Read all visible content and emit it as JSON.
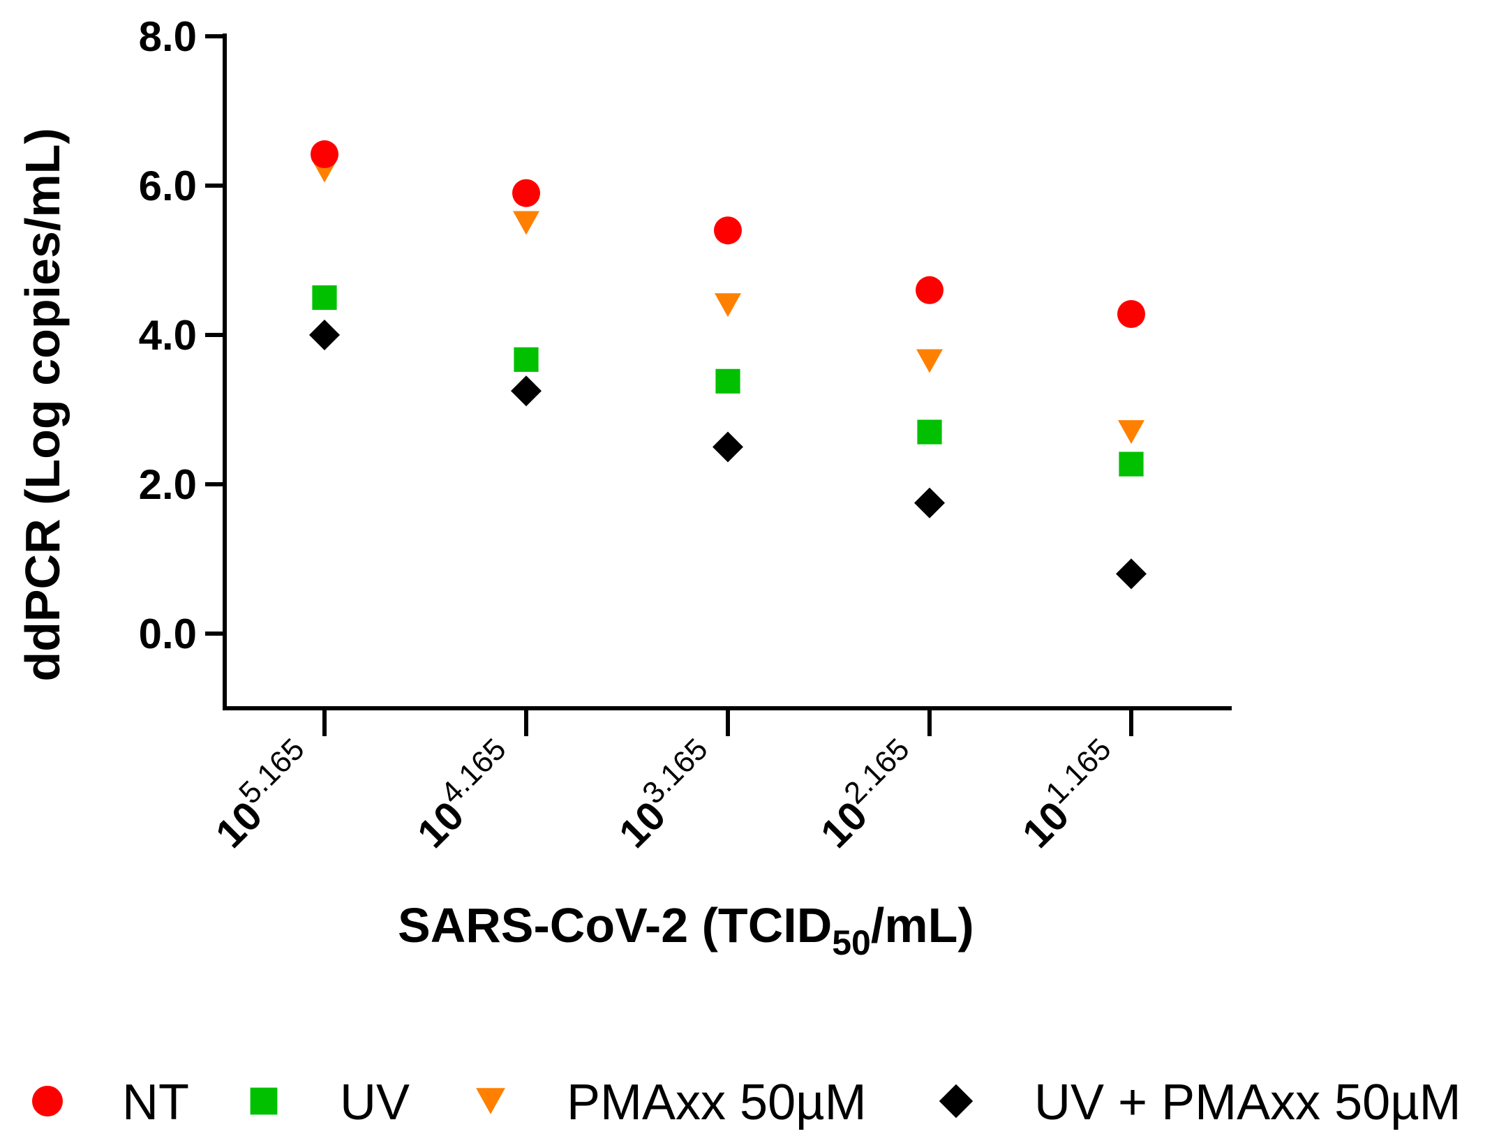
{
  "chart_data": {
    "type": "scatter",
    "title": "",
    "xlabel": "SARS-CoV-2 (TCID",
    "xlabel_subscript": "50",
    "xlabel_suffix": "/mL)",
    "ylabel": "ddPCR (Log copies/mL)",
    "ylim": [
      -1.0,
      8.0
    ],
    "yticks": [
      "0.0",
      "2.0",
      "4.0",
      "6.0",
      "8.0"
    ],
    "ytick_values": [
      0,
      2,
      4,
      6,
      8
    ],
    "categories": [
      {
        "base": "10",
        "exp": "5.165"
      },
      {
        "base": "10",
        "exp": "4.165"
      },
      {
        "base": "10",
        "exp": "3.165"
      },
      {
        "base": "10",
        "exp": "2.165"
      },
      {
        "base": "10",
        "exp": "1.165"
      }
    ],
    "series": [
      {
        "name": "NT",
        "marker": "circle",
        "color": "#ff0000",
        "values": [
          6.42,
          5.9,
          5.4,
          4.6,
          4.28
        ]
      },
      {
        "name": "UV",
        "marker": "square",
        "color": "#00c000",
        "values": [
          4.5,
          3.67,
          3.38,
          2.7,
          2.27
        ]
      },
      {
        "name": "PMAxx 50µM",
        "marker": "triangle-down",
        "color": "#ff8000",
        "values": [
          6.2,
          5.5,
          4.4,
          3.65,
          2.7
        ]
      },
      {
        "name": "UV + PMAxx 50µM",
        "marker": "diamond",
        "color": "#000000",
        "values": [
          4.0,
          3.25,
          2.5,
          1.75,
          0.8
        ]
      }
    ],
    "legend_position": "bottom",
    "grid": false
  }
}
